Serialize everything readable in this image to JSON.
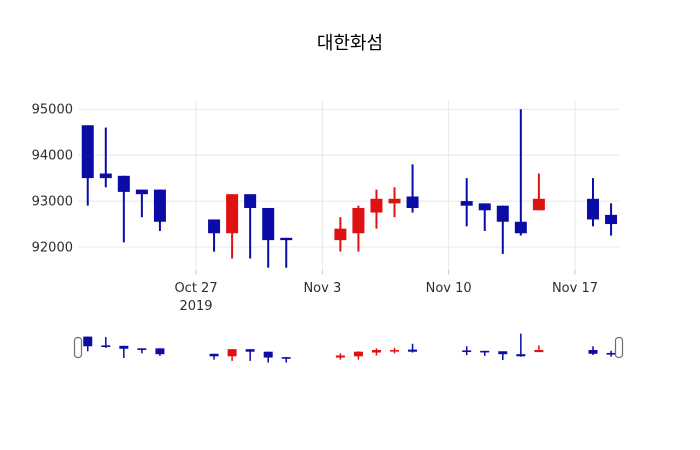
{
  "chart_data": {
    "type": "candlestick",
    "title": "대한화섬",
    "increasing_color": "#df1212",
    "decreasing_color": "#0b0ba6",
    "grid": true,
    "grid_color": "#e8e8e8",
    "tick_mark_color": "#c9c9c9",
    "background_color": "#ffffff",
    "text_color": "#2e2e2e",
    "legend": "none",
    "rangeslider": true,
    "y_range": [
      91500,
      95200
    ],
    "y_ticks": [
      {
        "value": 92000,
        "label": "92000"
      },
      {
        "value": 93000,
        "label": "93000"
      },
      {
        "value": 94000,
        "label": "94000"
      },
      {
        "value": 95000,
        "label": "95000"
      }
    ],
    "x_ticks": [
      {
        "date": "2019-10-27",
        "lines": [
          "Oct 27",
          "2019"
        ]
      },
      {
        "date": "2019-11-03",
        "lines": [
          "Nov 3"
        ]
      },
      {
        "date": "2019-11-10",
        "lines": [
          "Nov 10"
        ]
      },
      {
        "date": "2019-11-17",
        "lines": [
          "Nov 17"
        ]
      }
    ],
    "candles": [
      {
        "date": "2019-10-21",
        "open": 94650,
        "high": 94650,
        "low": 92900,
        "close": 93500
      },
      {
        "date": "2019-10-22",
        "open": 93600,
        "high": 94600,
        "low": 93300,
        "close": 93500
      },
      {
        "date": "2019-10-23",
        "open": 93550,
        "high": 93550,
        "low": 92100,
        "close": 93200
      },
      {
        "date": "2019-10-24",
        "open": 93250,
        "high": 93250,
        "low": 92650,
        "close": 93150
      },
      {
        "date": "2019-10-25",
        "open": 93250,
        "high": 93250,
        "low": 92350,
        "close": 92550
      },
      {
        "date": "2019-10-28",
        "open": 92600,
        "high": 92600,
        "low": 91900,
        "close": 92300
      },
      {
        "date": "2019-10-29",
        "open": 92300,
        "high": 93150,
        "low": 91750,
        "close": 93150
      },
      {
        "date": "2019-10-30",
        "open": 93150,
        "high": 93150,
        "low": 91750,
        "close": 92850
      },
      {
        "date": "2019-10-31",
        "open": 92850,
        "high": 92850,
        "low": 91550,
        "close": 92150
      },
      {
        "date": "2019-11-01",
        "open": 92200,
        "high": 92200,
        "low": 91550,
        "close": 92150
      },
      {
        "date": "2019-11-04",
        "open": 92150,
        "high": 92650,
        "low": 91900,
        "close": 92400
      },
      {
        "date": "2019-11-05",
        "open": 92300,
        "high": 92900,
        "low": 91900,
        "close": 92850
      },
      {
        "date": "2019-11-06",
        "open": 92750,
        "high": 93250,
        "low": 92400,
        "close": 93050
      },
      {
        "date": "2019-11-07",
        "open": 92950,
        "high": 93300,
        "low": 92650,
        "close": 93050
      },
      {
        "date": "2019-11-08",
        "open": 93100,
        "high": 93800,
        "low": 92750,
        "close": 92850
      },
      {
        "date": "2019-11-11",
        "open": 93000,
        "high": 93500,
        "low": 92450,
        "close": 92900
      },
      {
        "date": "2019-11-12",
        "open": 92950,
        "high": 92950,
        "low": 92350,
        "close": 92800
      },
      {
        "date": "2019-11-13",
        "open": 92900,
        "high": 92900,
        "low": 91850,
        "close": 92550
      },
      {
        "date": "2019-11-14",
        "open": 92550,
        "high": 95000,
        "low": 92250,
        "close": 92300
      },
      {
        "date": "2019-11-15",
        "open": 92800,
        "high": 93600,
        "low": 92800,
        "close": 93050
      },
      {
        "date": "2019-11-18",
        "open": 93050,
        "high": 93500,
        "low": 92450,
        "close": 92600
      },
      {
        "date": "2019-11-19",
        "open": 92700,
        "high": 92950,
        "low": 92250,
        "close": 92500
      }
    ]
  }
}
